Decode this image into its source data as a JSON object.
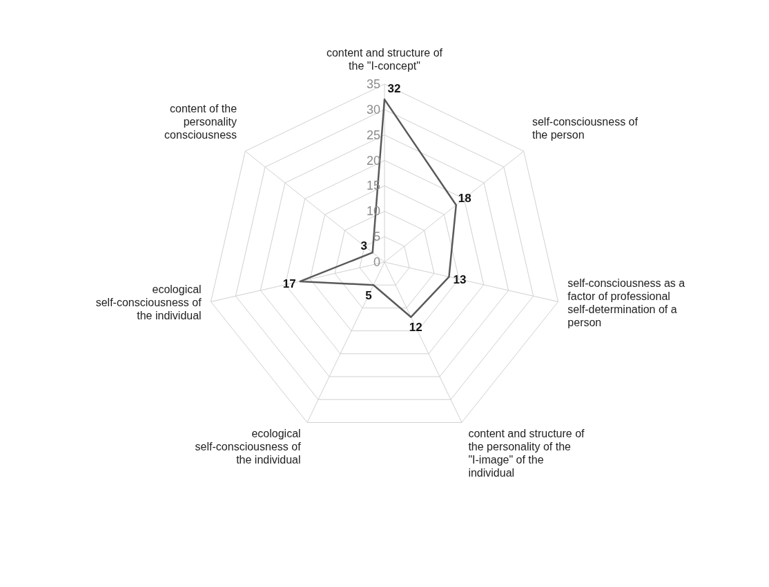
{
  "chart_data": {
    "type": "radar",
    "categories": [
      "content and structure of the \"I-concept\"",
      "self-consciousness of the person",
      "self-consciousness as a factor of professional self-determination of a person",
      "content and structure of the personality of the \"I-image\" of the individual",
      "ecological self-consciousness of the individual",
      "ecological self-consciousness of the individual",
      "content of the personality consciousness"
    ],
    "series": [
      {
        "color": "#595959",
        "values": [
          32,
          18,
          13,
          12,
          5,
          17,
          3
        ]
      }
    ],
    "ylim": [
      0,
      35
    ],
    "yticks": [
      0,
      5,
      10,
      15,
      20,
      25,
      30,
      35
    ],
    "grid": true,
    "data_labels": true,
    "marker": "none",
    "line_style": "solid"
  }
}
